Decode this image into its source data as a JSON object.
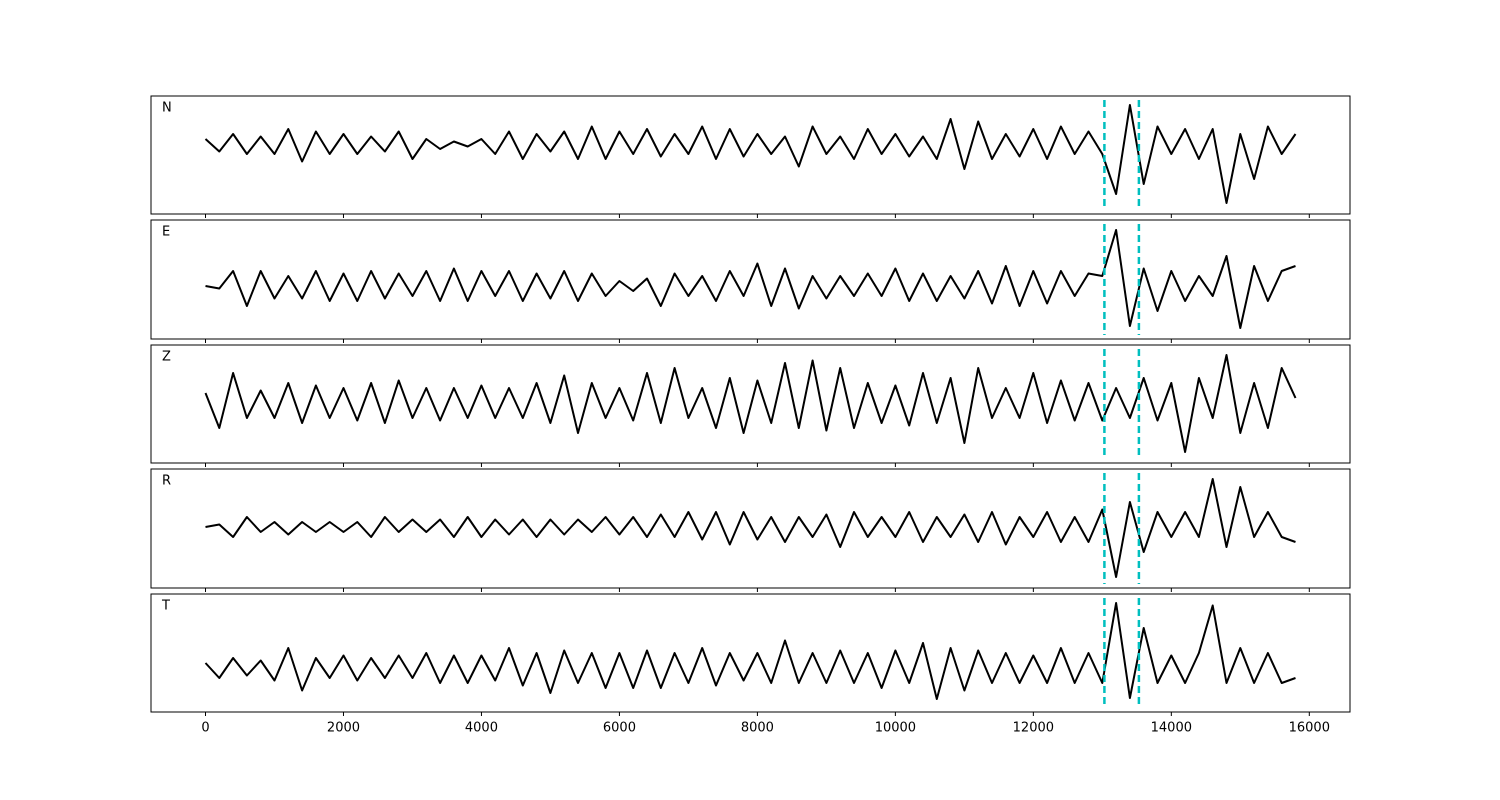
{
  "chart_data": {
    "type": "line",
    "x": [
      0,
      200,
      400,
      600,
      800,
      1000,
      1200,
      1400,
      1600,
      1800,
      2000,
      2200,
      2400,
      2600,
      2800,
      3000,
      3200,
      3400,
      3600,
      3800,
      4000,
      4200,
      4400,
      4600,
      4800,
      5000,
      5200,
      5400,
      5600,
      5800,
      6000,
      6200,
      6400,
      6600,
      6800,
      7000,
      7200,
      7400,
      7600,
      7800,
      8000,
      8200,
      8400,
      8600,
      8800,
      9000,
      9200,
      9400,
      9600,
      9800,
      10000,
      10200,
      10400,
      10600,
      10800,
      11000,
      11200,
      11400,
      11600,
      11800,
      12000,
      12200,
      12400,
      12600,
      12800,
      13000,
      13200,
      13400,
      13600,
      13800,
      14000,
      14200,
      14400,
      14600,
      14800,
      15000,
      15200,
      15400,
      15600,
      15800
    ],
    "xlim": [
      -790,
      16590
    ],
    "xticks": [
      0,
      2000,
      4000,
      6000,
      8000,
      10000,
      12000,
      14000,
      16000
    ],
    "vlines": [
      13030,
      13530
    ],
    "vline_color": "#00bfbf",
    "series": [
      {
        "name": "N",
        "color": "#000000",
        "ylim": [
          -1.4,
          0.96
        ],
        "values": [
          0.1,
          -0.15,
          0.2,
          -0.2,
          0.15,
          -0.2,
          0.3,
          -0.35,
          0.25,
          -0.2,
          0.2,
          -0.2,
          0.15,
          -0.15,
          0.25,
          -0.3,
          0.1,
          -0.1,
          0.05,
          -0.05,
          0.1,
          -0.2,
          0.25,
          -0.3,
          0.2,
          -0.15,
          0.25,
          -0.3,
          0.35,
          -0.3,
          0.25,
          -0.2,
          0.3,
          -0.25,
          0.2,
          -0.2,
          0.35,
          -0.3,
          0.3,
          -0.25,
          0.2,
          -0.2,
          0.15,
          -0.45,
          0.35,
          -0.2,
          0.15,
          -0.3,
          0.3,
          -0.2,
          0.2,
          -0.25,
          0.15,
          -0.3,
          0.5,
          -0.5,
          0.45,
          -0.3,
          0.2,
          -0.25,
          0.3,
          -0.3,
          0.35,
          -0.2,
          0.25,
          -0.2,
          -1.0,
          0.78,
          -0.8,
          0.35,
          -0.2,
          0.3,
          -0.3,
          0.3,
          -1.18,
          0.2,
          -0.7,
          0.35,
          -0.2,
          0.2
        ]
      },
      {
        "name": "E",
        "color": "#000000",
        "ylim": [
          -1.06,
          1.32
        ],
        "values": [
          0.0,
          -0.05,
          0.3,
          -0.4,
          0.3,
          -0.25,
          0.2,
          -0.25,
          0.3,
          -0.3,
          0.25,
          -0.3,
          0.3,
          -0.25,
          0.25,
          -0.2,
          0.3,
          -0.3,
          0.35,
          -0.3,
          0.3,
          -0.2,
          0.3,
          -0.3,
          0.25,
          -0.25,
          0.3,
          -0.3,
          0.25,
          -0.2,
          0.1,
          -0.1,
          0.15,
          -0.4,
          0.25,
          -0.2,
          0.2,
          -0.3,
          0.3,
          -0.2,
          0.45,
          -0.4,
          0.35,
          -0.45,
          0.2,
          -0.25,
          0.2,
          -0.2,
          0.25,
          -0.2,
          0.35,
          -0.3,
          0.25,
          -0.3,
          0.2,
          -0.25,
          0.3,
          -0.35,
          0.4,
          -0.4,
          0.3,
          -0.35,
          0.3,
          -0.2,
          0.25,
          0.2,
          1.12,
          -0.8,
          0.35,
          -0.5,
          0.3,
          -0.3,
          0.2,
          -0.2,
          0.6,
          -0.84,
          0.4,
          -0.3,
          0.3,
          0.4
        ]
      },
      {
        "name": "Z",
        "color": "#000000",
        "ylim": [
          -1.2,
          1.16
        ],
        "values": [
          0.2,
          -0.5,
          0.6,
          -0.3,
          0.25,
          -0.3,
          0.4,
          -0.4,
          0.35,
          -0.3,
          0.3,
          -0.35,
          0.4,
          -0.4,
          0.45,
          -0.3,
          0.3,
          -0.35,
          0.3,
          -0.3,
          0.35,
          -0.3,
          0.3,
          -0.3,
          0.4,
          -0.4,
          0.55,
          -0.6,
          0.4,
          -0.3,
          0.3,
          -0.35,
          0.6,
          -0.4,
          0.7,
          -0.3,
          0.3,
          -0.5,
          0.5,
          -0.6,
          0.45,
          -0.4,
          0.8,
          -0.5,
          0.85,
          -0.55,
          0.7,
          -0.5,
          0.4,
          -0.4,
          0.35,
          -0.45,
          0.6,
          -0.4,
          0.5,
          -0.8,
          0.7,
          -0.3,
          0.3,
          -0.3,
          0.6,
          -0.4,
          0.45,
          -0.35,
          0.4,
          -0.35,
          0.3,
          -0.3,
          0.5,
          -0.35,
          0.4,
          -0.98,
          0.5,
          -0.3,
          0.96,
          -0.6,
          0.4,
          -0.5,
          0.7,
          0.1
        ]
      },
      {
        "name": "R",
        "color": "#000000",
        "ylim": [
          -1.22,
          1.16
        ],
        "values": [
          0.0,
          0.05,
          -0.2,
          0.2,
          -0.1,
          0.1,
          -0.15,
          0.1,
          -0.1,
          0.1,
          -0.1,
          0.1,
          -0.2,
          0.2,
          -0.1,
          0.15,
          -0.1,
          0.15,
          -0.2,
          0.2,
          -0.2,
          0.15,
          -0.15,
          0.15,
          -0.2,
          0.15,
          -0.15,
          0.15,
          -0.1,
          0.2,
          -0.15,
          0.2,
          -0.2,
          0.25,
          -0.2,
          0.3,
          -0.25,
          0.3,
          -0.35,
          0.3,
          -0.25,
          0.2,
          -0.3,
          0.2,
          -0.2,
          0.25,
          -0.4,
          0.3,
          -0.2,
          0.2,
          -0.2,
          0.3,
          -0.3,
          0.2,
          -0.2,
          0.25,
          -0.3,
          0.3,
          -0.35,
          0.2,
          -0.2,
          0.3,
          -0.3,
          0.2,
          -0.3,
          0.35,
          -1.0,
          0.5,
          -0.5,
          0.3,
          -0.2,
          0.3,
          -0.2,
          0.96,
          -0.4,
          0.8,
          -0.2,
          0.3,
          -0.2,
          -0.3
        ]
      },
      {
        "name": "T",
        "color": "#000000",
        "ylim": [
          -0.88,
          1.48
        ],
        "values": [
          0.1,
          -0.2,
          0.2,
          -0.15,
          0.15,
          -0.25,
          0.4,
          -0.45,
          0.2,
          -0.2,
          0.25,
          -0.25,
          0.2,
          -0.2,
          0.25,
          -0.2,
          0.3,
          -0.3,
          0.25,
          -0.3,
          0.25,
          -0.25,
          0.4,
          -0.35,
          0.3,
          -0.5,
          0.35,
          -0.3,
          0.3,
          -0.4,
          0.3,
          -0.4,
          0.35,
          -0.4,
          0.3,
          -0.3,
          0.4,
          -0.35,
          0.3,
          -0.25,
          0.3,
          -0.3,
          0.55,
          -0.3,
          0.3,
          -0.3,
          0.35,
          -0.3,
          0.3,
          -0.4,
          0.35,
          -0.3,
          0.5,
          -0.62,
          0.4,
          -0.45,
          0.35,
          -0.3,
          0.3,
          -0.3,
          0.25,
          -0.3,
          0.4,
          -0.3,
          0.3,
          -0.3,
          1.3,
          -0.6,
          0.8,
          -0.3,
          0.25,
          -0.3,
          0.3,
          1.25,
          -0.3,
          0.4,
          -0.3,
          0.3,
          -0.3,
          -0.2
        ]
      }
    ]
  }
}
